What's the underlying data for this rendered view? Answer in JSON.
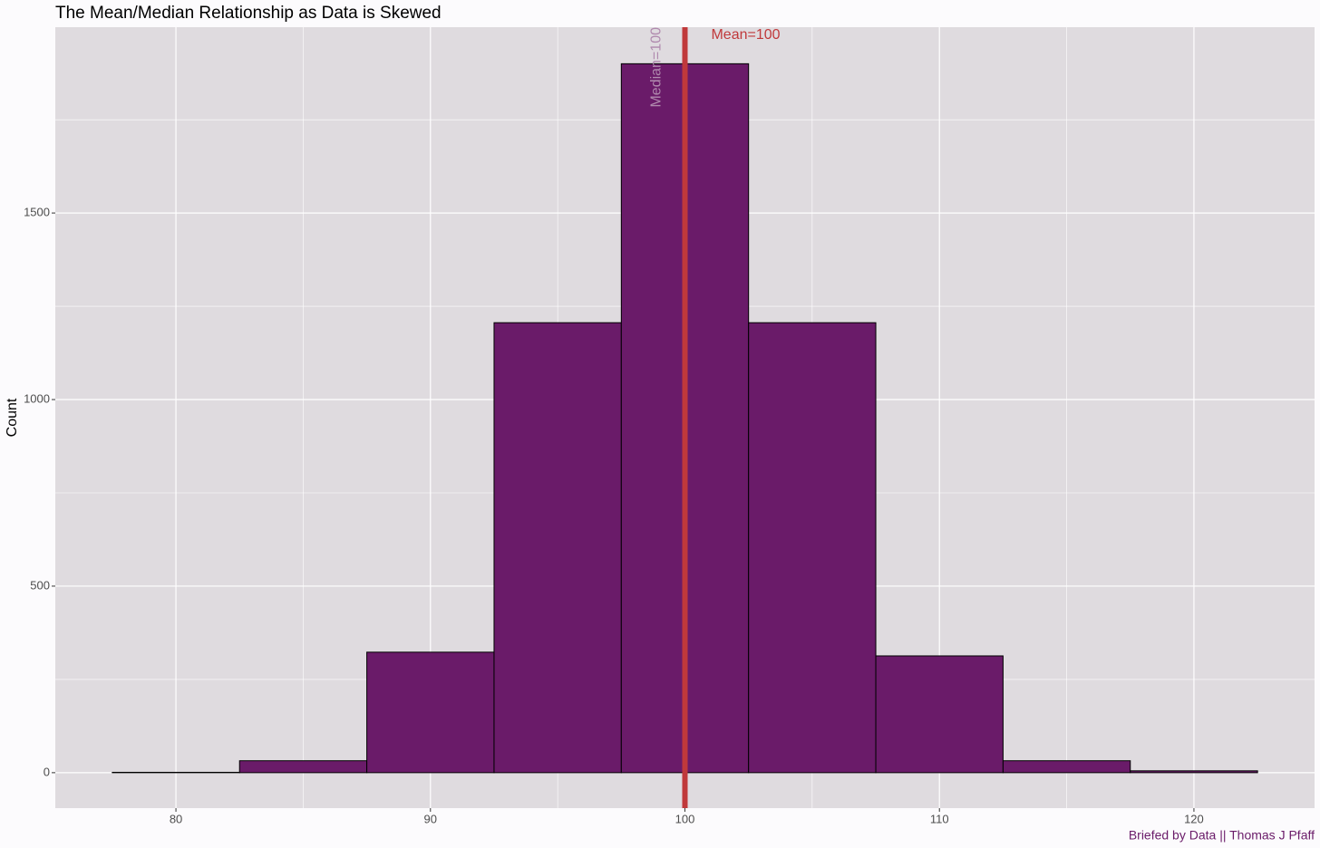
{
  "chart_data": {
    "type": "histogram",
    "title": "The Mean/Median Relationship as Data is Skewed",
    "y_label": "Count",
    "caption": "Briefed by Data || Thomas J Pfaff",
    "bins": [
      77.5,
      82.5,
      87.5,
      92.5,
      97.5,
      102.5,
      107.5,
      112.5,
      117.5,
      122.5
    ],
    "values": [
      1,
      32,
      323,
      1206,
      1900,
      1206,
      313,
      32,
      5
    ],
    "color": "#6a1b69",
    "xlim": [
      75.26,
      124.74
    ],
    "ylim": [
      -95,
      1998
    ],
    "xticks": [
      80,
      90,
      100,
      110,
      120
    ],
    "yticks": [
      0,
      500,
      1000,
      1500
    ],
    "xminorticks": [
      85,
      95,
      105,
      115
    ],
    "yminorticks": [
      250,
      750,
      1250,
      1750
    ],
    "grid": true,
    "mean": 100,
    "mean_label": "Mean=100",
    "mean_color": "#c0393b",
    "median": 100,
    "median_label": "Median=100",
    "median_color": "#b08aae"
  }
}
